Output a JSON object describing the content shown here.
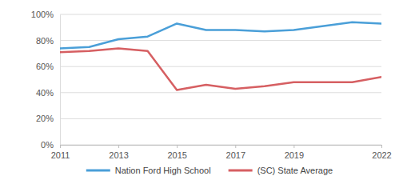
{
  "chart_data": {
    "type": "line",
    "x": [
      2011,
      2012,
      2013,
      2014,
      2015,
      2016,
      2017,
      2018,
      2019,
      2021,
      2022
    ],
    "series": [
      {
        "name": "Nation Ford High School",
        "color": "#4a9fd8",
        "values": [
          74,
          75,
          81,
          83,
          93,
          88,
          88,
          87,
          88,
          94,
          93
        ]
      },
      {
        "name": "(SC) State Average",
        "color": "#d65f62",
        "values": [
          71,
          72,
          74,
          72,
          42,
          46,
          43,
          45,
          48,
          48,
          52
        ]
      }
    ],
    "xlim": [
      2011,
      2022
    ],
    "xticks": [
      2011,
      2013,
      2015,
      2017,
      2019,
      2022
    ],
    "ylim": [
      0,
      100
    ],
    "yticks": [
      {
        "value": 0,
        "label": "0%"
      },
      {
        "value": 20,
        "label": "20%"
      },
      {
        "value": 40,
        "label": "40%"
      },
      {
        "value": 60,
        "label": "60%"
      },
      {
        "value": 80,
        "label": "80%"
      },
      {
        "value": 100,
        "label": "100%"
      }
    ],
    "grid": true,
    "legend": "bottom"
  }
}
